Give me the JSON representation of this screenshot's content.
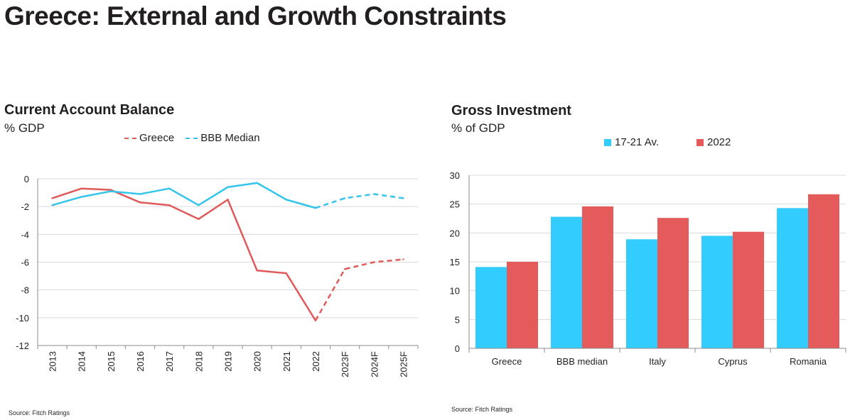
{
  "page": {
    "title": "Greece: External and Growth Constraints"
  },
  "colors": {
    "greece_line": "#e05a5a",
    "bbb_line": "#35c4ea",
    "bar_avg": "#33ccff",
    "bar_2022": "#e55b5b",
    "grid": "#d9d9d9",
    "axis": "#8c8c8c"
  },
  "left_panel": {
    "title": "Current Account Balance",
    "subtitle": "% GDP",
    "source": "Source: Fitch Ratings"
  },
  "right_panel": {
    "title": "Gross Investment",
    "subtitle": "% of GDP",
    "source": "Source: Fitch Ratings"
  },
  "chart_data": [
    {
      "type": "line",
      "title": "Current Account Balance",
      "ylabel": "% GDP",
      "categories": [
        "2013",
        "2014",
        "2015",
        "2016",
        "2017",
        "2018",
        "2019",
        "2020",
        "2021",
        "2022",
        "2023F",
        "2024F",
        "2025F"
      ],
      "ylim": [
        -12,
        0
      ],
      "yticks": [
        0,
        -2,
        -4,
        -6,
        -8,
        -10,
        -12
      ],
      "grid": "horizontal",
      "legend_position": "top",
      "forecast_from_index": 9,
      "series": [
        {
          "name": "Greece",
          "color": "#e05a5a",
          "values": [
            -1.4,
            -0.7,
            -0.8,
            -1.7,
            -1.9,
            -2.9,
            -1.5,
            -6.6,
            -6.8,
            -10.2,
            -6.5,
            -6.0,
            -5.8
          ]
        },
        {
          "name": "BBB Median",
          "color": "#35c4ea",
          "values": [
            -1.9,
            -1.3,
            -0.9,
            -1.1,
            -0.7,
            -1.9,
            -0.6,
            -0.3,
            -1.5,
            -2.1,
            -1.4,
            -1.1,
            -1.4
          ]
        }
      ]
    },
    {
      "type": "bar",
      "title": "Gross Investment",
      "ylabel": "% of GDP",
      "categories": [
        "Greece",
        "BBB median",
        "Italy",
        "Cyprus",
        "Romania"
      ],
      "ylim": [
        0,
        30
      ],
      "yticks": [
        0,
        5,
        10,
        15,
        20,
        25,
        30
      ],
      "grid": "horizontal",
      "legend_position": "top",
      "series": [
        {
          "name": "17-21 Av.",
          "color": "#33ccff",
          "values": [
            14.1,
            22.8,
            18.9,
            19.5,
            24.3
          ]
        },
        {
          "name": "2022",
          "color": "#e55b5b",
          "values": [
            15.0,
            24.6,
            22.6,
            20.2,
            26.7
          ]
        }
      ]
    }
  ]
}
